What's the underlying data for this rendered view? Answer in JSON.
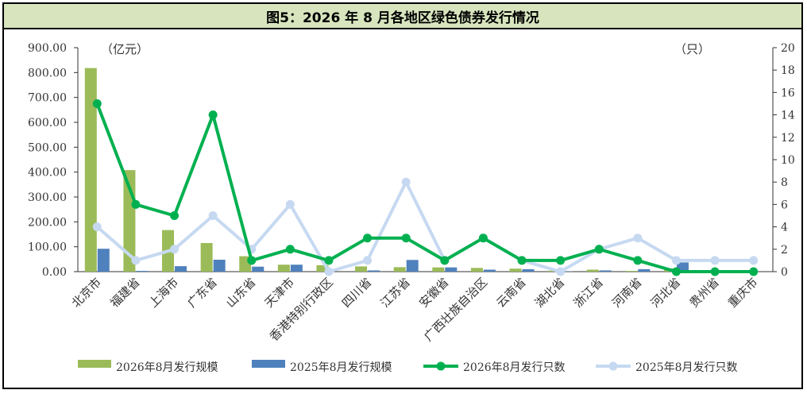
{
  "chart_data": {
    "type": "bar+line",
    "title": "图5：2026 年 8 月各地区绿色债券发行情况",
    "left_unit": "（亿元）",
    "right_unit": "（只）",
    "categories": [
      "北京市",
      "福建省",
      "上海市",
      "广东省",
      "山东省",
      "天津市",
      "香港特别行政区",
      "四川省",
      "江苏省",
      "安徽省",
      "广西壮族自治区",
      "云南省",
      "湖北省",
      "浙江省",
      "河南省",
      "河北省",
      "贵州省",
      "重庆市"
    ],
    "left_axis": {
      "min": 0,
      "max": 900,
      "step": 100,
      "tick_labels": [
        "0.00",
        "100.00",
        "200.00",
        "300.00",
        "400.00",
        "500.00",
        "600.00",
        "700.00",
        "800.00",
        "900.00"
      ]
    },
    "right_axis": {
      "min": 0,
      "max": 20,
      "step": 2,
      "tick_labels": [
        "0",
        "2",
        "4",
        "6",
        "8",
        "10",
        "12",
        "14",
        "16",
        "18",
        "20"
      ]
    },
    "bar_series": [
      {
        "name": "2026年8月发行规模",
        "color": "#9bbb59",
        "values": [
          818,
          408,
          167,
          115,
          62,
          28,
          26,
          21,
          18,
          17,
          15,
          12,
          4,
          8,
          3,
          13,
          2,
          1
        ]
      },
      {
        "name": "2025年8月发行规模",
        "color": "#4f81bd",
        "values": [
          92,
          3,
          22,
          48,
          20,
          28,
          0,
          5,
          47,
          17,
          8,
          10,
          1,
          5,
          10,
          37,
          0,
          0
        ]
      }
    ],
    "line_series": [
      {
        "name": "2026年8月发行只数",
        "color": "#00b050",
        "values": [
          15,
          6,
          5,
          14,
          1,
          2,
          1,
          3,
          3,
          1,
          3,
          1,
          1,
          2,
          1,
          0,
          0,
          0
        ]
      },
      {
        "name": "2025年8月发行只数",
        "color": "#c6d9f1",
        "values": [
          4,
          1,
          2,
          5,
          2,
          6,
          0,
          1,
          8,
          1,
          3,
          1,
          0,
          2,
          3,
          1,
          1,
          1
        ]
      }
    ],
    "grid": false,
    "legend_position": "bottom"
  }
}
